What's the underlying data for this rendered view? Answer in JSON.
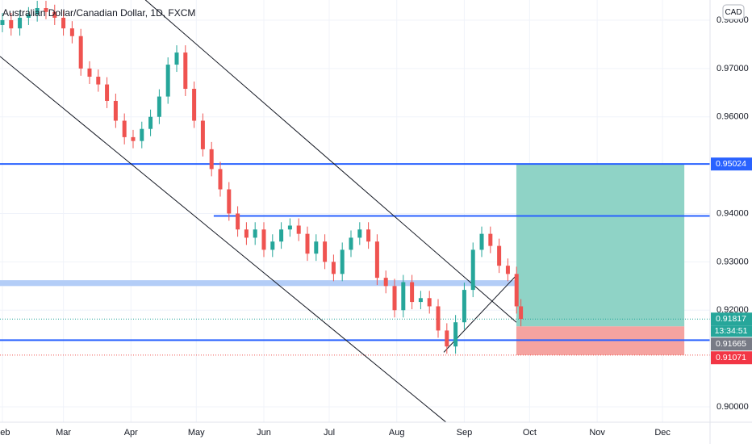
{
  "chart_data": {
    "type": "candlestick",
    "title": "Australian Dollar/Canadian Dollar, 1D, FXCM",
    "currency": "CAD",
    "countdown": "13:34:51",
    "xlim": [
      -1.1,
      324.8
    ],
    "ylim": [
      0.89683,
      0.98417
    ],
    "xticks": [
      {
        "value": 0,
        "label": "Feb"
      },
      {
        "value": 28,
        "label": "Mar"
      },
      {
        "value": 59,
        "label": "Apr"
      },
      {
        "value": 89,
        "label": "May"
      },
      {
        "value": 120,
        "label": "Jun"
      },
      {
        "value": 150,
        "label": "Jul"
      },
      {
        "value": 181,
        "label": "Aug"
      },
      {
        "value": 212,
        "label": "Sep"
      },
      {
        "value": 242,
        "label": "Oct"
      },
      {
        "value": 273,
        "label": "Nov"
      },
      {
        "value": 303,
        "label": "Dec"
      }
    ],
    "yticks": [
      {
        "value": 0.98,
        "label": "0.98000"
      },
      {
        "value": 0.97,
        "label": "0.97000"
      },
      {
        "value": 0.96,
        "label": "0.96000"
      },
      {
        "value": 0.94,
        "label": "0.94000"
      },
      {
        "value": 0.93,
        "label": "0.93000"
      },
      {
        "value": 0.92,
        "label": "0.92000"
      },
      {
        "value": 0.9,
        "label": "0.90000"
      }
    ],
    "grid": true,
    "series": {
      "up_color": "#26a69a",
      "down_color": "#ef5350",
      "x": [
        0,
        4,
        8,
        12,
        16,
        20,
        24,
        28,
        32,
        36,
        40,
        44,
        48,
        52,
        56,
        60,
        64,
        68,
        72,
        76,
        80,
        84,
        88,
        92,
        96,
        100,
        104,
        108,
        112,
        116,
        120,
        124,
        128,
        132,
        136,
        140,
        144,
        148,
        152,
        156,
        160,
        164,
        168,
        172,
        176,
        180,
        184,
        188,
        192,
        196,
        200,
        204,
        208,
        212,
        216,
        220,
        224,
        228,
        232,
        236,
        238
      ],
      "open": [
        0.979,
        0.98,
        0.9783,
        0.9805,
        0.9812,
        0.9825,
        0.9817,
        0.9805,
        0.9783,
        0.9767,
        0.97,
        0.9683,
        0.9667,
        0.9633,
        0.9592,
        0.9558,
        0.955,
        0.9575,
        0.96,
        0.9642,
        0.9708,
        0.9733,
        0.9658,
        0.9592,
        0.9533,
        0.9492,
        0.945,
        0.94,
        0.9367,
        0.935,
        0.9367,
        0.9325,
        0.9342,
        0.9367,
        0.9375,
        0.9358,
        0.9317,
        0.9342,
        0.93,
        0.9275,
        0.9325,
        0.935,
        0.9367,
        0.9342,
        0.9267,
        0.925,
        0.92,
        0.9258,
        0.9217,
        0.9225,
        0.9208,
        0.9158,
        0.9125,
        0.9175,
        0.9242,
        0.9325,
        0.9358,
        0.9333,
        0.9292,
        0.9275,
        0.9208
      ],
      "high": [
        0.9815,
        0.9815,
        0.982,
        0.9827,
        0.984,
        0.984,
        0.9832,
        0.982,
        0.9798,
        0.9782,
        0.9715,
        0.9698,
        0.9682,
        0.9648,
        0.9607,
        0.9573,
        0.959,
        0.9615,
        0.9657,
        0.9723,
        0.9748,
        0.9748,
        0.9673,
        0.9607,
        0.9548,
        0.9507,
        0.9465,
        0.9415,
        0.9382,
        0.9382,
        0.9382,
        0.9357,
        0.9382,
        0.939,
        0.939,
        0.9373,
        0.9357,
        0.9357,
        0.9315,
        0.934,
        0.9365,
        0.9382,
        0.9382,
        0.9357,
        0.9282,
        0.9265,
        0.9273,
        0.9273,
        0.924,
        0.924,
        0.9223,
        0.9173,
        0.919,
        0.9257,
        0.934,
        0.9373,
        0.9373,
        0.9348,
        0.9307,
        0.929,
        0.9223
      ],
      "low": [
        0.9775,
        0.9768,
        0.9768,
        0.979,
        0.9797,
        0.9802,
        0.979,
        0.9768,
        0.9752,
        0.9685,
        0.9668,
        0.9652,
        0.9618,
        0.9577,
        0.9543,
        0.9535,
        0.9535,
        0.956,
        0.9585,
        0.9627,
        0.9693,
        0.9643,
        0.9577,
        0.9518,
        0.9477,
        0.9435,
        0.9385,
        0.9352,
        0.9335,
        0.9335,
        0.931,
        0.931,
        0.9327,
        0.9352,
        0.9343,
        0.9302,
        0.9302,
        0.9285,
        0.926,
        0.926,
        0.931,
        0.9335,
        0.9327,
        0.9252,
        0.9235,
        0.9185,
        0.9185,
        0.9202,
        0.9202,
        0.9193,
        0.9143,
        0.911,
        0.911,
        0.916,
        0.9227,
        0.931,
        0.9318,
        0.9277,
        0.926,
        0.9193,
        0.91667
      ],
      "close": [
        0.98,
        0.9783,
        0.9805,
        0.9812,
        0.9825,
        0.9817,
        0.9805,
        0.9783,
        0.9767,
        0.97,
        0.9683,
        0.9667,
        0.9633,
        0.9592,
        0.9558,
        0.955,
        0.9575,
        0.96,
        0.9642,
        0.9708,
        0.9733,
        0.9658,
        0.9592,
        0.9533,
        0.9492,
        0.945,
        0.94,
        0.9367,
        0.935,
        0.9367,
        0.9325,
        0.9342,
        0.9367,
        0.9375,
        0.9358,
        0.9317,
        0.9342,
        0.93,
        0.9275,
        0.9325,
        0.935,
        0.9367,
        0.9342,
        0.9267,
        0.925,
        0.92,
        0.9258,
        0.9217,
        0.9225,
        0.9208,
        0.9158,
        0.9125,
        0.9175,
        0.9242,
        0.9325,
        0.9358,
        0.9333,
        0.9292,
        0.9275,
        0.9208,
        0.91817
      ],
      "last_label": "0.91817"
    },
    "trendlines": [
      {
        "x": [
          -1.1,
          203.7
        ],
        "y": [
          0.9725,
          0.8968
        ]
      },
      {
        "x": [
          65.6,
          235.9
        ],
        "y": [
          0.9842,
          0.9175
        ]
      },
      {
        "x": [
          202.6,
          235.9
        ],
        "y": [
          0.9113,
          0.9272
        ]
      }
    ],
    "levels": [
      {
        "value": 0.95024,
        "label": "0.95024",
        "color": "#2962ff"
      },
      {
        "value": 0.9395,
        "from": 97,
        "color": "#2962ff"
      },
      {
        "value": 0.9138,
        "color": "#2962ff"
      }
    ],
    "band": {
      "low": 0.925,
      "high": 0.9262,
      "to": 247,
      "color": "#b3cdf7"
    },
    "position": {
      "x": [
        235.9,
        313
      ],
      "entry": 0.91665,
      "entry_label": "0.91665",
      "target": 0.95024,
      "stop": 0.91071,
      "stop_label": "0.91071",
      "profit_color": "#8fd3c6",
      "loss_color": "#f5a3a0"
    }
  }
}
